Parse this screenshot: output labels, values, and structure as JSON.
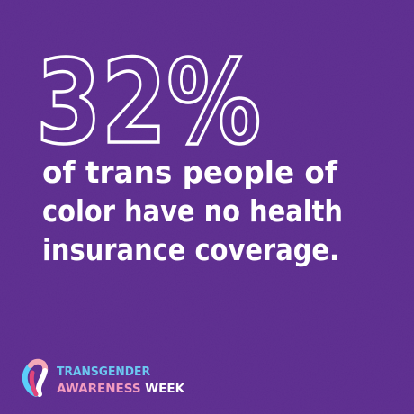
{
  "headline": {
    "stat": "32%",
    "lines": [
      "of trans people of",
      "color have no health",
      "insurance coverage."
    ]
  },
  "logo": {
    "line1": "TRANSGENDER",
    "word1": "AWARENESS",
    "word2": "WEEK"
  }
}
